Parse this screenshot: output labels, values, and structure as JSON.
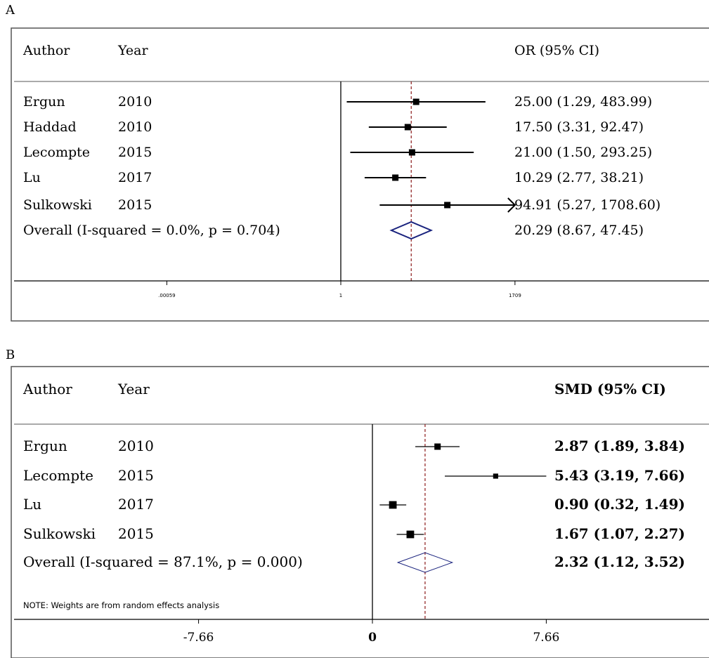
{
  "chart_data": [
    {
      "type": "forest",
      "panel_label": "A",
      "columns": {
        "author": "Author",
        "year": "Year",
        "effect": "OR (95% CI)"
      },
      "scale": "log",
      "reference_line": 1,
      "pooled_line": 20.29,
      "xlim": [
        0.00059,
        1709
      ],
      "ticks": [
        {
          "value": 0.00059,
          "label": ".00059"
        },
        {
          "value": 1,
          "label": "1"
        },
        {
          "value": 1709,
          "label": "1709"
        }
      ],
      "studies": [
        {
          "author": "Ergun",
          "year": "2010",
          "est": 25.0,
          "lo": 1.29,
          "hi": 483.99,
          "ci_text": "25.00 (1.29, 483.99)",
          "weight": 1
        },
        {
          "author": "Haddad",
          "year": "2010",
          "est": 17.5,
          "lo": 3.31,
          "hi": 92.47,
          "ci_text": "17.50 (3.31, 92.47)",
          "weight": 1
        },
        {
          "author": "Lecompte",
          "year": "2015",
          "est": 21.0,
          "lo": 1.5,
          "hi": 293.25,
          "ci_text": "21.00 (1.50, 293.25)",
          "weight": 1
        },
        {
          "author": "Lu",
          "year": "2017",
          "est": 10.29,
          "lo": 2.77,
          "hi": 38.21,
          "ci_text": "10.29 (2.77, 38.21)",
          "weight": 1
        },
        {
          "author": "Sulkowski",
          "year": "2015",
          "est": 94.91,
          "lo": 5.27,
          "hi": 1708.6,
          "ci_text": "94.91 (5.27, 1708.60)",
          "weight": 1,
          "arrow_right": true
        }
      ],
      "overall": {
        "label": "Overall  (I-squared = 0.0%, p = 0.704)",
        "est": 20.29,
        "lo": 8.67,
        "hi": 47.45,
        "ci_text": "20.29 (8.67, 47.45)"
      }
    },
    {
      "type": "forest",
      "panel_label": "B",
      "columns": {
        "author": "Author",
        "year": "Year",
        "effect": "SMD (95% CI)"
      },
      "scale": "linear",
      "reference_line": 0,
      "pooled_line": 2.32,
      "xlim": [
        -7.66,
        7.66
      ],
      "ticks": [
        {
          "value": -7.66,
          "label": "-7.66"
        },
        {
          "value": 0,
          "label": "0"
        },
        {
          "value": 7.66,
          "label": "7.66"
        }
      ],
      "studies": [
        {
          "author": "Ergun",
          "year": "2010",
          "est": 2.87,
          "lo": 1.89,
          "hi": 3.84,
          "ci_text": "2.87 (1.89, 3.84)",
          "weight": 1
        },
        {
          "author": "Lecompte",
          "year": "2015",
          "est": 5.43,
          "lo": 3.19,
          "hi": 7.66,
          "ci_text": "5.43 (3.19, 7.66)",
          "weight": 0.8
        },
        {
          "author": "Lu",
          "year": "2017",
          "est": 0.9,
          "lo": 0.32,
          "hi": 1.49,
          "ci_text": "0.90 (0.32, 1.49)",
          "weight": 1.2
        },
        {
          "author": "Sulkowski",
          "year": "2015",
          "est": 1.67,
          "lo": 1.07,
          "hi": 2.27,
          "ci_text": "1.67 (1.07, 2.27)",
          "weight": 1.2
        }
      ],
      "overall": {
        "label": "Overall  (I-squared = 87.1%, p = 0.000)",
        "est": 2.32,
        "lo": 1.12,
        "hi": 3.52,
        "ci_text": "2.32 (1.12, 3.52)"
      },
      "note": "NOTE: Weights are from random effects analysis"
    }
  ],
  "colors": {
    "frame": "#555555",
    "pooled_line": "#8b1a1a",
    "diamond_A": "#1a237e",
    "diamond_B": "#1a237e"
  }
}
